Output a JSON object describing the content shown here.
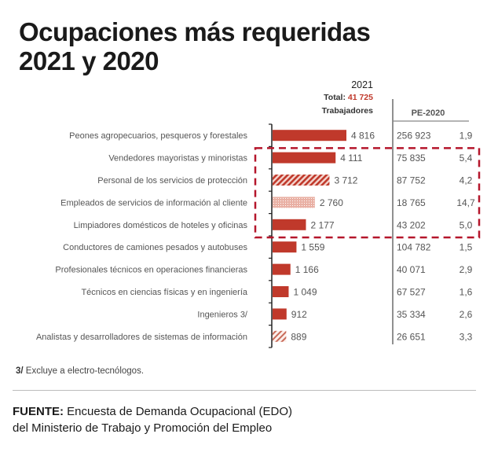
{
  "title_line1": "Ocupaciones más requeridas",
  "title_line2": "2021 y 2020",
  "header": {
    "year": "2021",
    "total_label": "Total:",
    "total_value": "41 725",
    "unit": "Trabajadores",
    "pe_label": "PE-2020"
  },
  "colors": {
    "bar": "#c0392b",
    "highlight_box": "#b5162b",
    "axis": "#222222",
    "text": "#555555"
  },
  "chart_data": {
    "type": "bar",
    "orientation": "horizontal",
    "title": "Ocupaciones más requeridas 2021 y 2020",
    "series_name": "2021 Trabajadores",
    "total_2021": 41725,
    "categories": [
      "Peones agropecuarios, pesqueros y forestales",
      "Vendedores mayoristas y minoristas",
      "Personal de los servicios de protección",
      "Empleados de servicios de información al cliente",
      "Limpiadores domésticos de hoteles y oficinas",
      "Conductores de camiones pesados y autobuses",
      "Profesionales técnicos en operaciones financieras",
      "Técnicos en ciencias físicas y en ingeniería",
      "Ingenieros 3/",
      "Analistas y desarrolladores de sistemas de información"
    ],
    "values": [
      4816,
      4111,
      3712,
      2760,
      2177,
      1559,
      1166,
      1049,
      912,
      889
    ],
    "value_labels": [
      "4 816",
      "4 111",
      "3 712",
      "2 760",
      "2 177",
      "1 559",
      "1 166",
      "1 049",
      "912",
      "889"
    ],
    "bar_styles": [
      "solid",
      "solid",
      "hatch",
      "dotted",
      "solid",
      "solid",
      "solid",
      "solid",
      "solid",
      "hatch-light"
    ],
    "highlighted_rows": [
      1,
      2,
      3,
      4
    ],
    "xlim": [
      0,
      4816
    ],
    "grid": false,
    "legend": "none",
    "table": {
      "header": "PE-2020",
      "pe_values": [
        "256 923",
        "75 835",
        "87 752",
        "18 765",
        "43 202",
        "104 782",
        "40 071",
        "67 527",
        "35 334",
        "26 651"
      ],
      "ratios": [
        "1,9",
        "5,4",
        "4,2",
        "14,7",
        "5,0",
        "1,5",
        "2,9",
        "1,6",
        "2,6",
        "3,3"
      ]
    }
  },
  "footnote": {
    "mark": "3/",
    "text": " Excluye a electro-tecnólogos."
  },
  "source": {
    "label": "FUENTE:",
    "line1": " Encuesta de Demanda Ocupacional (EDO)",
    "line2": "del Ministerio de Trabajo y Promoción del Empleo"
  }
}
